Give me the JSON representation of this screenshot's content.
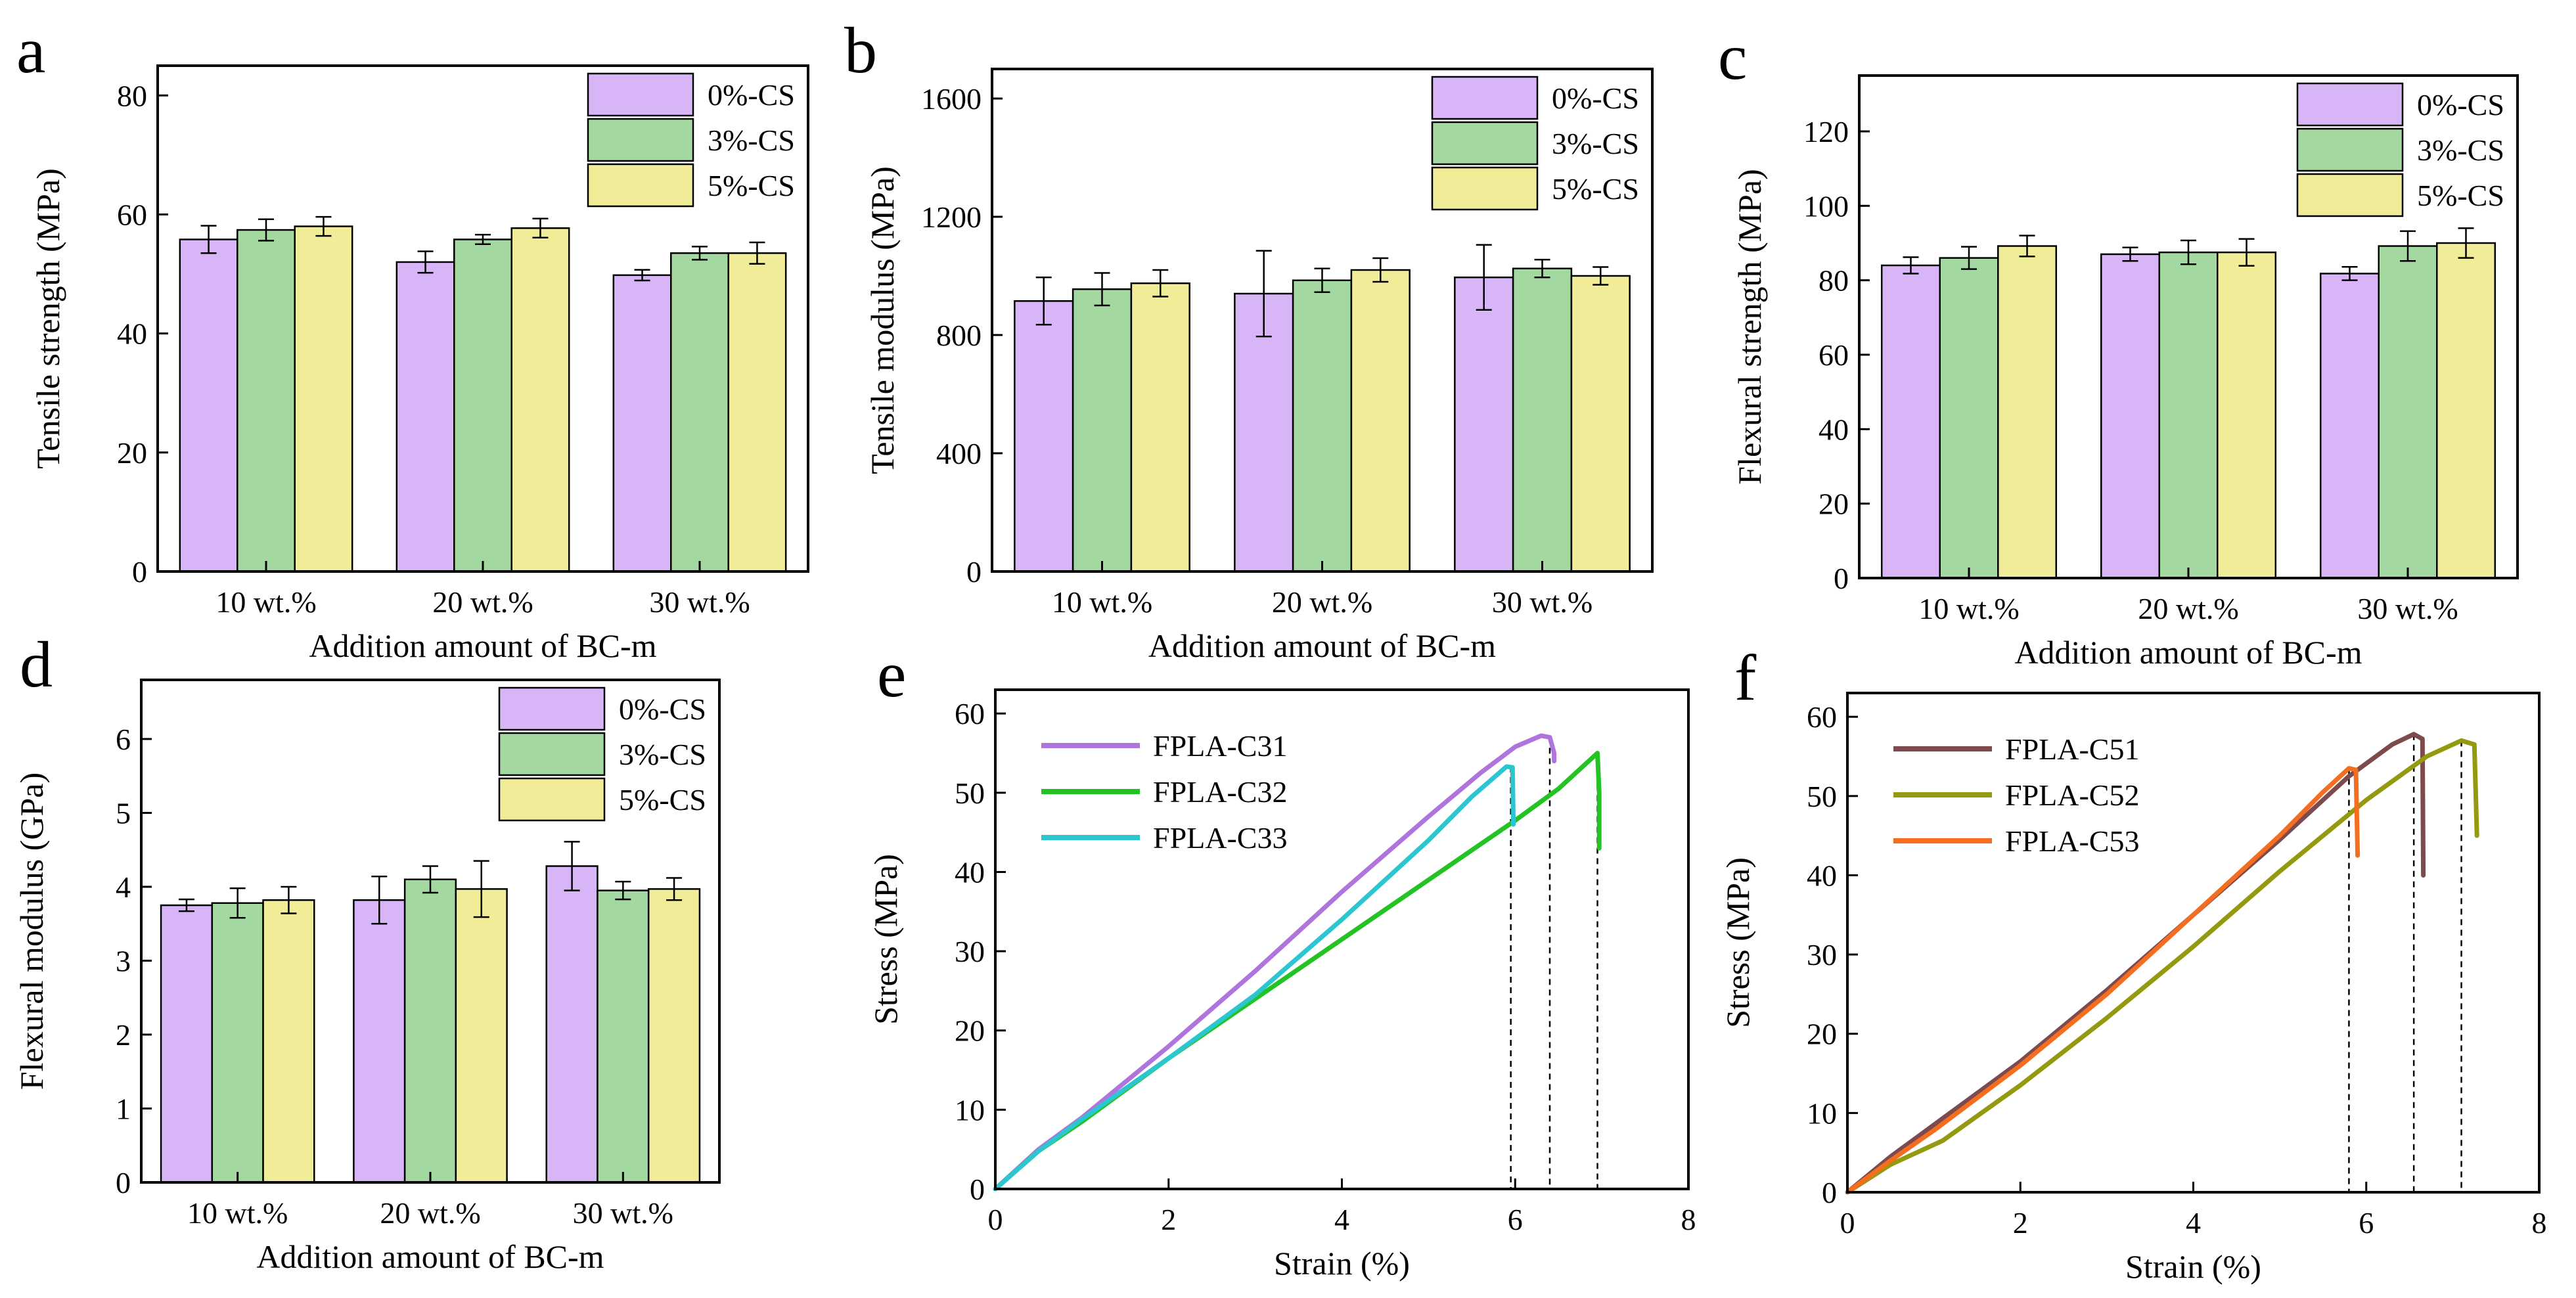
{
  "colors": {
    "cs0": "#d7b5f7",
    "cs3": "#a3d8a1",
    "cs5": "#f0ec98",
    "c31": "#b075dd",
    "c32": "#22c322",
    "c33": "#2bc6cf",
    "c51": "#7d4a4d",
    "c52": "#939a10",
    "c53": "#f56e1f"
  },
  "chart_data": [
    {
      "id": "a",
      "letter": "a",
      "type": "bar",
      "ylabel": "Tensile strength (MPa)",
      "xlabel": "Addition amount of BC-m",
      "ylim": [
        0,
        85
      ],
      "yticks": [
        0,
        20,
        40,
        60,
        80
      ],
      "categories": [
        "10 wt.%",
        "20 wt.%",
        "30 wt.%"
      ],
      "legend": {
        "position": "top-right"
      },
      "series": [
        {
          "name": "0%-CS",
          "color": "#d7b5f7",
          "values": [
            55.8,
            52.0,
            49.8
          ],
          "errors": [
            2.3,
            1.8,
            0.9
          ]
        },
        {
          "name": "3%-CS",
          "color": "#a3d8a1",
          "values": [
            57.4,
            55.8,
            53.5
          ],
          "errors": [
            1.8,
            0.8,
            1.1
          ]
        },
        {
          "name": "5%-CS",
          "color": "#f0ec98",
          "values": [
            58.0,
            57.7,
            53.5
          ],
          "errors": [
            1.6,
            1.6,
            1.8
          ]
        }
      ]
    },
    {
      "id": "b",
      "letter": "b",
      "type": "bar",
      "ylabel": "Tensile modulus (MPa)",
      "xlabel": "Addition amount of BC-m",
      "ylim": [
        0,
        1700
      ],
      "yticks": [
        0,
        400,
        800,
        1200,
        1600
      ],
      "categories": [
        "10 wt.%",
        "20 wt.%",
        "30 wt.%"
      ],
      "legend": {
        "position": "top-right"
      },
      "series": [
        {
          "name": "0%-CS",
          "color": "#d7b5f7",
          "values": [
            915,
            940,
            995
          ],
          "errors": [
            80,
            145,
            110
          ]
        },
        {
          "name": "3%-CS",
          "color": "#a3d8a1",
          "values": [
            955,
            985,
            1025
          ],
          "errors": [
            55,
            40,
            30
          ]
        },
        {
          "name": "5%-CS",
          "color": "#f0ec98",
          "values": [
            975,
            1020,
            1000
          ],
          "errors": [
            45,
            40,
            30
          ]
        }
      ]
    },
    {
      "id": "c",
      "letter": "c",
      "type": "bar",
      "ylabel": "Flexural strength (MPa)",
      "xlabel": "Addition amount of BC-m",
      "ylim": [
        0,
        135
      ],
      "yticks": [
        0,
        20,
        40,
        60,
        80,
        100,
        120
      ],
      "categories": [
        "10 wt.%",
        "20 wt.%",
        "30 wt.%"
      ],
      "legend": {
        "position": "top-right"
      },
      "series": [
        {
          "name": "0%-CS",
          "color": "#d7b5f7",
          "values": [
            84.0,
            87.0,
            81.8
          ],
          "errors": [
            2.2,
            1.8,
            1.8
          ]
        },
        {
          "name": "3%-CS",
          "color": "#a3d8a1",
          "values": [
            86.0,
            87.5,
            89.2
          ],
          "errors": [
            3.0,
            3.2,
            4.0
          ]
        },
        {
          "name": "5%-CS",
          "color": "#f0ec98",
          "values": [
            89.2,
            87.5,
            90.0
          ],
          "errors": [
            2.8,
            3.6,
            4.0
          ]
        }
      ]
    },
    {
      "id": "d",
      "letter": "d",
      "type": "bar",
      "ylabel": "Flexural modulus (GPa)",
      "xlabel": "Addition amount of BC-m",
      "ylim": [
        0,
        6.8
      ],
      "yticks": [
        0,
        1,
        2,
        3,
        4,
        5,
        6
      ],
      "categories": [
        "10 wt.%",
        "20 wt.%",
        "30 wt.%"
      ],
      "legend": {
        "position": "top-right"
      },
      "series": [
        {
          "name": "0%-CS",
          "color": "#d7b5f7",
          "values": [
            3.75,
            3.82,
            4.28
          ],
          "errors": [
            0.08,
            0.32,
            0.33
          ]
        },
        {
          "name": "3%-CS",
          "color": "#a3d8a1",
          "values": [
            3.78,
            4.1,
            3.95
          ],
          "errors": [
            0.2,
            0.18,
            0.12
          ]
        },
        {
          "name": "5%-CS",
          "color": "#f0ec98",
          "values": [
            3.82,
            3.97,
            3.97
          ],
          "errors": [
            0.18,
            0.38,
            0.15
          ]
        }
      ]
    },
    {
      "id": "e",
      "letter": "e",
      "type": "line",
      "xlabel": "Strain (%)",
      "ylabel": "Stress (MPa)",
      "xlim": [
        0,
        8
      ],
      "ylim": [
        0,
        63
      ],
      "xticks": [
        0,
        2,
        4,
        6,
        8
      ],
      "yticks": [
        0,
        10,
        20,
        30,
        40,
        50,
        60
      ],
      "legend": {
        "position": "top-left"
      },
      "series": [
        {
          "name": "FPLA-C31",
          "color": "#b075dd",
          "break_strain": 6.4,
          "x": [
            0,
            0.5,
            1,
            2,
            3,
            4,
            5,
            5.6,
            6.0,
            6.3,
            6.4,
            6.45,
            6.45
          ],
          "y": [
            0,
            5,
            9,
            18,
            27.5,
            37.5,
            47,
            52.5,
            55.8,
            57.2,
            57.0,
            55.0,
            54.0
          ]
        },
        {
          "name": "FPLA-C32",
          "color": "#22c322",
          "break_strain": 6.95,
          "x": [
            0,
            0.5,
            1,
            2,
            3,
            4,
            5,
            6,
            6.5,
            6.95,
            6.97,
            6.97
          ],
          "y": [
            0,
            4.8,
            8.5,
            16.5,
            24,
            31.5,
            39,
            46.5,
            50.5,
            55.0,
            50.0,
            43.0
          ]
        },
        {
          "name": "FPLA-C33",
          "color": "#2bc6cf",
          "break_strain": 5.95,
          "x": [
            0,
            0.5,
            1,
            2,
            3,
            4,
            5,
            5.5,
            5.9,
            5.97,
            5.98
          ],
          "y": [
            0,
            4.8,
            8.8,
            16.5,
            24.5,
            34,
            44,
            49.5,
            53.3,
            53.2,
            46.0
          ]
        }
      ]
    },
    {
      "id": "f",
      "letter": "f",
      "type": "line",
      "xlabel": "Strain (%)",
      "ylabel": "Stress (MPa)",
      "xlim": [
        0,
        8
      ],
      "ylim": [
        0,
        63
      ],
      "xticks": [
        0,
        2,
        4,
        6,
        8
      ],
      "yticks": [
        0,
        10,
        20,
        30,
        40,
        50,
        60
      ],
      "legend": {
        "position": "top-left"
      },
      "series": [
        {
          "name": "FPLA-C51",
          "color": "#7d4a4d",
          "break_strain": 6.55,
          "x": [
            0,
            0.5,
            1,
            2,
            3,
            4,
            5,
            5.8,
            6.3,
            6.55,
            6.65,
            6.66
          ],
          "y": [
            0,
            4.5,
            8.5,
            16.5,
            25.5,
            35,
            44.5,
            52.5,
            56.5,
            57.8,
            57.2,
            40.0
          ]
        },
        {
          "name": "FPLA-C52",
          "color": "#939a10",
          "break_strain": 7.1,
          "x": [
            0,
            0.5,
            1.1,
            2,
            3,
            4,
            5,
            6,
            6.7,
            7.1,
            7.25,
            7.28
          ],
          "y": [
            0,
            3.5,
            6.5,
            13.5,
            22,
            31,
            40.5,
            49.5,
            55,
            57.0,
            56.5,
            45.0
          ]
        },
        {
          "name": "FPLA-C53",
          "color": "#f56e1f",
          "break_strain": 5.8,
          "x": [
            0,
            0.5,
            1,
            2,
            3,
            4,
            5,
            5.5,
            5.8,
            5.88,
            5.9
          ],
          "y": [
            0,
            4.0,
            7.8,
            16,
            25,
            35,
            45,
            50.5,
            53.5,
            53.3,
            42.5
          ]
        }
      ]
    }
  ]
}
